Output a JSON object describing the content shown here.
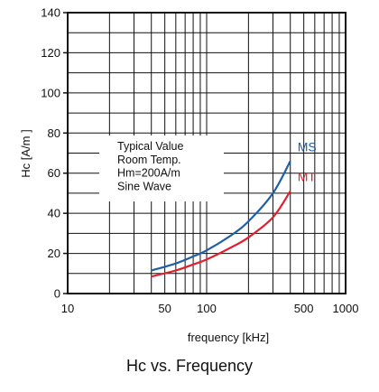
{
  "caption": "Hc vs. Frequency",
  "chart_data": {
    "type": "line",
    "title": "Hc vs. Frequency",
    "xlabel": "frequency  [kHz]",
    "ylabel": "Hc [A/m ]",
    "xscale": "log",
    "xlim": [
      10,
      1000
    ],
    "ylim": [
      0,
      140
    ],
    "xticks": [
      10,
      50,
      100,
      500,
      1000
    ],
    "yticks": [
      0,
      20,
      40,
      60,
      80,
      100,
      120,
      140
    ],
    "grid": true,
    "annotation": [
      "Typical Value",
      "Room Temp.",
      "Hm=200A/m",
      "Sine Wave"
    ],
    "series": [
      {
        "name": "MS",
        "color": "#1f5fa6",
        "x": [
          40,
          60,
          80,
          100,
          150,
          200,
          300,
          400
        ],
        "y": [
          11.5,
          15,
          18.5,
          21.5,
          29,
          36,
          50,
          66
        ]
      },
      {
        "name": "MT",
        "color": "#e0202e",
        "x": [
          40,
          60,
          80,
          100,
          150,
          200,
          300,
          400
        ],
        "y": [
          8.5,
          11.5,
          14.5,
          17,
          23,
          28,
          38,
          51
        ]
      }
    ]
  }
}
